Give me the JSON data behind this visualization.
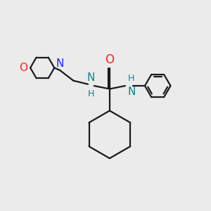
{
  "bg_color": "#ebebeb",
  "bond_color": "#1a1a1a",
  "N_color": "#2020ff",
  "O_color": "#ff2020",
  "NH_color": "#008b8b",
  "carbonyl_O_color": "#ff2020",
  "line_width": 1.6,
  "fig_size": [
    3.0,
    3.0
  ],
  "dpi": 100,
  "xlim": [
    0,
    10
  ],
  "ylim": [
    0,
    10
  ]
}
